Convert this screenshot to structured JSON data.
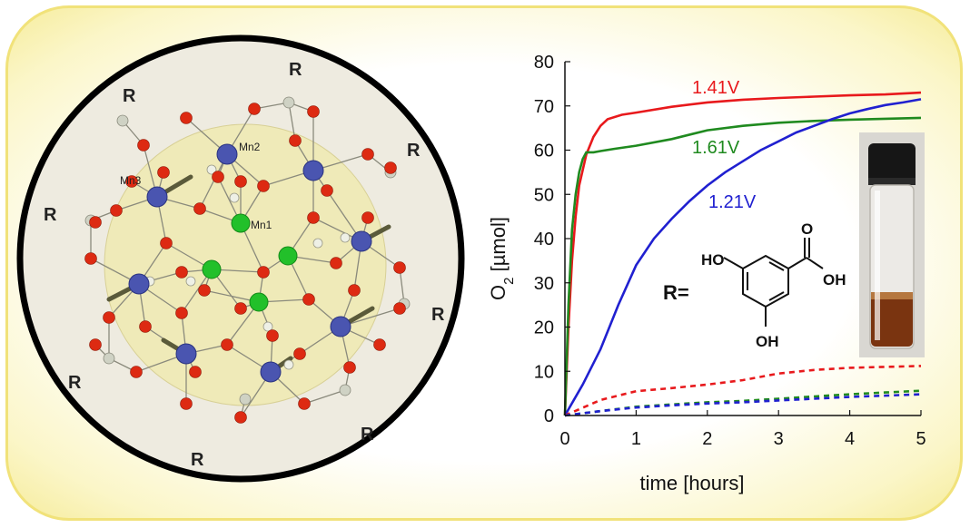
{
  "structure": {
    "r_label": "R",
    "mn_labels": [
      "Mn2",
      "Mn3",
      "Mn1"
    ],
    "colors": {
      "manganese": "#4a55b0",
      "green_metal": "#22c02a",
      "oxygen": "#dd2a12",
      "carbon": "#cfd2c4",
      "disc": "#efeab8",
      "background": "#eeebe0"
    }
  },
  "legend_inset": {
    "r_equals": "R=",
    "groups": [
      "HO",
      "O",
      "OH",
      "OH"
    ]
  },
  "chart_data": {
    "type": "line",
    "xlabel": "time [hours]",
    "ylabel_main": "O",
    "ylabel_sub": "2",
    "ylabel_unit": " [µmol]",
    "xlim": [
      0,
      5
    ],
    "ylim": [
      0,
      80
    ],
    "xticks": [
      0,
      1,
      2,
      3,
      4,
      5
    ],
    "yticks": [
      0,
      10,
      20,
      30,
      40,
      50,
      60,
      70,
      80
    ],
    "series": [
      {
        "name": "1.41V",
        "color": "#e8191c",
        "dash": false,
        "x": [
          0,
          0.05,
          0.1,
          0.15,
          0.2,
          0.3,
          0.4,
          0.5,
          0.6,
          0.8,
          1.0,
          1.5,
          2.0,
          2.5,
          3.0,
          3.5,
          4.0,
          4.5,
          5.0
        ],
        "y": [
          0,
          20,
          35,
          45,
          52,
          59,
          63,
          65.5,
          67,
          68,
          68.5,
          69.8,
          70.8,
          71.4,
          71.8,
          72.1,
          72.4,
          72.6,
          73
        ]
      },
      {
        "name": "1.61V",
        "color": "#1f8a1f",
        "dash": false,
        "x": [
          0,
          0.05,
          0.1,
          0.15,
          0.2,
          0.25,
          0.3,
          0.4,
          0.5,
          0.7,
          1.0,
          1.5,
          2.0,
          2.5,
          3.0,
          3.5,
          4.0,
          4.5,
          5.0
        ],
        "y": [
          0,
          25,
          42,
          50,
          55,
          58,
          59.5,
          59.5,
          59.8,
          60.3,
          61,
          62.5,
          64.5,
          65.5,
          66.2,
          66.6,
          66.9,
          67.1,
          67.3
        ]
      },
      {
        "name": "1.21V",
        "color": "#2020d0",
        "dash": false,
        "x": [
          0,
          0.25,
          0.5,
          0.75,
          1.0,
          1.25,
          1.5,
          1.75,
          2.0,
          2.25,
          2.5,
          2.75,
          3.0,
          3.25,
          3.5,
          3.75,
          4.0,
          4.25,
          4.5,
          4.75,
          5.0
        ],
        "y": [
          0,
          7,
          15,
          25,
          34,
          40,
          44.5,
          48.5,
          52,
          55,
          57.5,
          60,
          62,
          64,
          65.5,
          67,
          68.3,
          69.3,
          70.2,
          70.8,
          71.5
        ]
      },
      {
        "color": "#e8191c",
        "dash": true,
        "x": [
          0,
          0.5,
          1.0,
          1.5,
          2.0,
          2.5,
          3.0,
          3.5,
          4.0,
          4.5,
          5.0
        ],
        "y": [
          0,
          3.5,
          5.5,
          6.2,
          7,
          8,
          9.5,
          10.3,
          10.8,
          11,
          11.2
        ]
      },
      {
        "color": "#1f8a1f",
        "dash": true,
        "x": [
          0,
          0.5,
          1.0,
          1.5,
          2.0,
          2.5,
          3.0,
          3.5,
          4.0,
          4.5,
          5.0
        ],
        "y": [
          0,
          1,
          2,
          2.5,
          3,
          3.3,
          3.8,
          4.3,
          4.8,
          5.2,
          5.6
        ]
      },
      {
        "color": "#2020d0",
        "dash": true,
        "x": [
          0,
          0.5,
          1.0,
          1.5,
          2.0,
          2.5,
          3.0,
          3.5,
          4.0,
          4.5,
          5.0
        ],
        "y": [
          0,
          1,
          1.8,
          2.3,
          2.7,
          3,
          3.4,
          3.8,
          4.2,
          4.5,
          4.8
        ]
      }
    ],
    "series_labels": [
      "1.41V",
      "1.61V",
      "1.21V"
    ]
  }
}
